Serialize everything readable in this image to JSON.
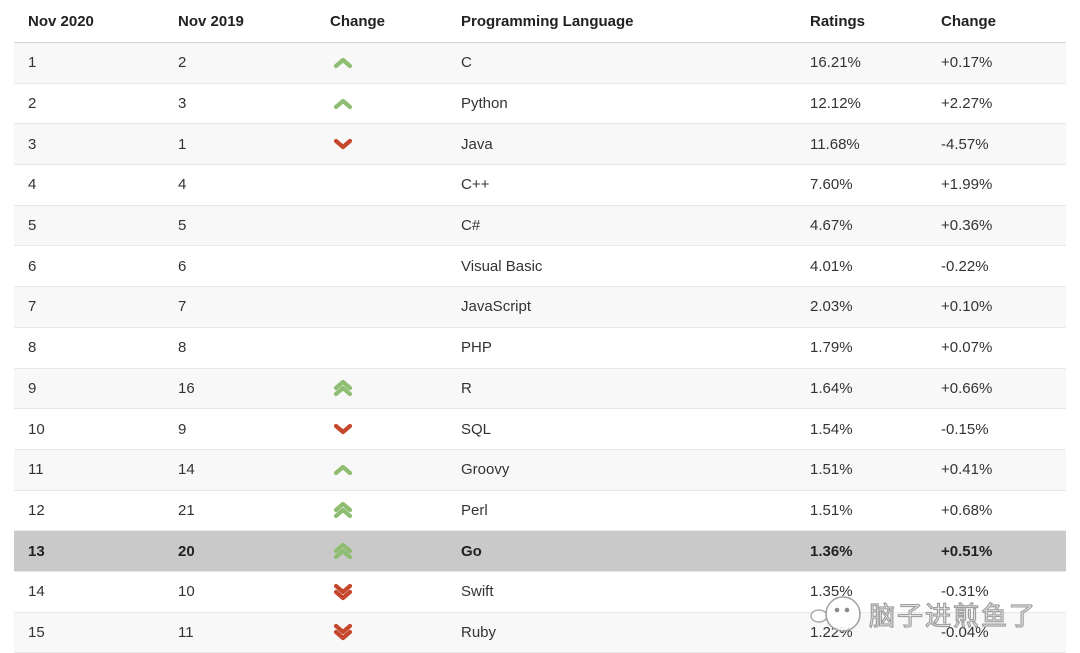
{
  "table": {
    "columns": [
      {
        "key": "rank_2020",
        "label": "Nov 2020"
      },
      {
        "key": "rank_2019",
        "label": "Nov 2019"
      },
      {
        "key": "change_icon",
        "label": "Change"
      },
      {
        "key": "language",
        "label": "Programming Language"
      },
      {
        "key": "rating",
        "label": "Ratings"
      },
      {
        "key": "rating_change",
        "label": "Change"
      }
    ],
    "rows": [
      {
        "rank_2020": "1",
        "rank_2019": "2",
        "change": "up",
        "language": "C",
        "rating": "16.21%",
        "rating_change": "+0.17%",
        "highlighted": false
      },
      {
        "rank_2020": "2",
        "rank_2019": "3",
        "change": "up",
        "language": "Python",
        "rating": "12.12%",
        "rating_change": "+2.27%",
        "highlighted": false
      },
      {
        "rank_2020": "3",
        "rank_2019": "1",
        "change": "down",
        "language": "Java",
        "rating": "11.68%",
        "rating_change": "-4.57%",
        "highlighted": false
      },
      {
        "rank_2020": "4",
        "rank_2019": "4",
        "change": "none",
        "language": "C++",
        "rating": "7.60%",
        "rating_change": "+1.99%",
        "highlighted": false
      },
      {
        "rank_2020": "5",
        "rank_2019": "5",
        "change": "none",
        "language": "C#",
        "rating": "4.67%",
        "rating_change": "+0.36%",
        "highlighted": false
      },
      {
        "rank_2020": "6",
        "rank_2019": "6",
        "change": "none",
        "language": "Visual Basic",
        "rating": "4.01%",
        "rating_change": "-0.22%",
        "highlighted": false
      },
      {
        "rank_2020": "7",
        "rank_2019": "7",
        "change": "none",
        "language": "JavaScript",
        "rating": "2.03%",
        "rating_change": "+0.10%",
        "highlighted": false
      },
      {
        "rank_2020": "8",
        "rank_2019": "8",
        "change": "none",
        "language": "PHP",
        "rating": "1.79%",
        "rating_change": "+0.07%",
        "highlighted": false
      },
      {
        "rank_2020": "9",
        "rank_2019": "16",
        "change": "up-double",
        "language": "R",
        "rating": "1.64%",
        "rating_change": "+0.66%",
        "highlighted": false
      },
      {
        "rank_2020": "10",
        "rank_2019": "9",
        "change": "down",
        "language": "SQL",
        "rating": "1.54%",
        "rating_change": "-0.15%",
        "highlighted": false
      },
      {
        "rank_2020": "11",
        "rank_2019": "14",
        "change": "up",
        "language": "Groovy",
        "rating": "1.51%",
        "rating_change": "+0.41%",
        "highlighted": false
      },
      {
        "rank_2020": "12",
        "rank_2019": "21",
        "change": "up-double",
        "language": "Perl",
        "rating": "1.51%",
        "rating_change": "+0.68%",
        "highlighted": false
      },
      {
        "rank_2020": "13",
        "rank_2019": "20",
        "change": "up-double",
        "language": "Go",
        "rating": "1.36%",
        "rating_change": "+0.51%",
        "highlighted": true
      },
      {
        "rank_2020": "14",
        "rank_2019": "10",
        "change": "down-double",
        "language": "Swift",
        "rating": "1.35%",
        "rating_change": "-0.31%",
        "highlighted": false
      },
      {
        "rank_2020": "15",
        "rank_2019": "11",
        "change": "down-double",
        "language": "Ruby",
        "rating": "1.22%",
        "rating_change": "-0.04%",
        "highlighted": false
      }
    ]
  },
  "colors": {
    "arrow_up": "#8fbe72",
    "arrow_down": "#c5472c",
    "highlight_row_bg": "#c9c9c9",
    "stripe_row_bg": "#f8f8f8",
    "header_text": "#222222",
    "cell_text": "#333333"
  },
  "watermark": {
    "text": "脑子进煎鱼了"
  }
}
